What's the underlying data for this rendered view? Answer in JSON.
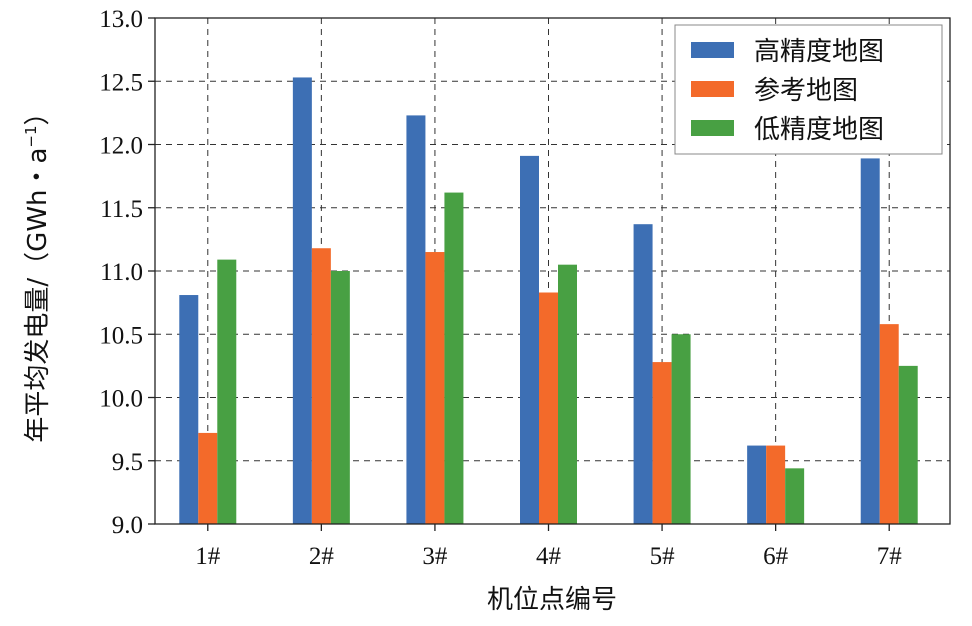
{
  "chart_data": {
    "type": "bar",
    "title": "",
    "xlabel": "机位点编号",
    "ylabel": "年平均发电量/（GWh・a⁻¹）",
    "ylabel_parts": {
      "main": "年平均发电量/（GWh・a",
      "sup": "−1",
      "end": "）"
    },
    "categories": [
      "1#",
      "2#",
      "3#",
      "4#",
      "5#",
      "6#",
      "7#"
    ],
    "series": [
      {
        "name": "高精度地图",
        "color": "#3d6fb4",
        "values": [
          10.81,
          12.53,
          12.23,
          11.91,
          11.37,
          9.62,
          11.89
        ]
      },
      {
        "name": "参考地图",
        "color": "#f36a2a",
        "values": [
          9.72,
          11.18,
          11.15,
          10.83,
          10.28,
          9.62,
          10.58
        ]
      },
      {
        "name": "低精度地图",
        "color": "#48a043",
        "values": [
          11.09,
          11.0,
          11.62,
          11.05,
          10.5,
          9.44,
          10.25
        ]
      }
    ],
    "ylim": [
      9.0,
      13.0
    ],
    "yticks": [
      "9.0",
      "9.5",
      "10.0",
      "10.5",
      "11.0",
      "11.5",
      "12.0",
      "12.5",
      "13.0"
    ],
    "grid": true,
    "legend_position": "top-right"
  }
}
